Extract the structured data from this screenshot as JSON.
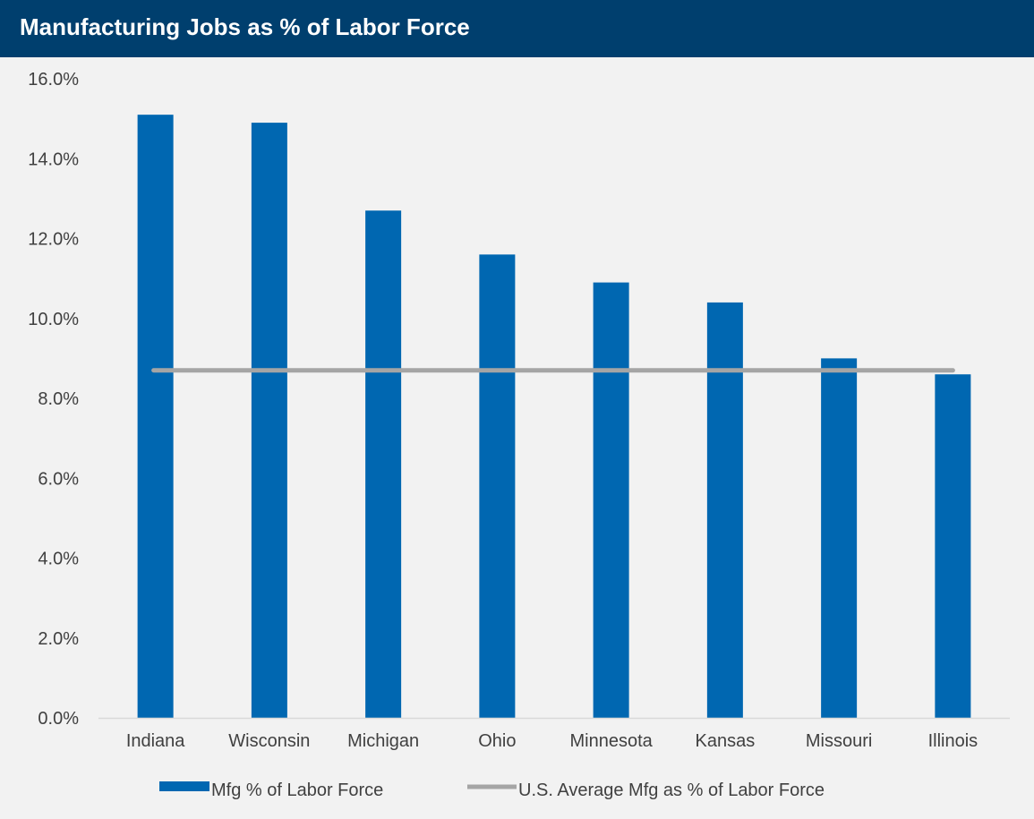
{
  "header": {
    "title": "Manufacturing Jobs as % of Labor Force"
  },
  "chart_data": {
    "type": "bar",
    "title": "Manufacturing Jobs as % of Labor Force",
    "xlabel": "",
    "ylabel": "",
    "categories": [
      "Indiana",
      "Wisconsin",
      "Michigan",
      "Ohio",
      "Minnesota",
      "Kansas",
      "Missouri",
      "Illinois"
    ],
    "series": [
      {
        "name": "Mfg % of Labor Force",
        "kind": "bar",
        "color": "#0067b1",
        "values": [
          15.1,
          14.9,
          12.7,
          11.6,
          10.9,
          10.4,
          9.0,
          8.6
        ]
      },
      {
        "name": "U.S. Average Mfg as % of Labor Force",
        "kind": "line",
        "color": "#a5a5a5",
        "values": [
          8.7,
          8.7,
          8.7,
          8.7,
          8.7,
          8.7,
          8.7,
          8.7
        ]
      }
    ],
    "ylim": [
      0,
      16
    ],
    "yticks": [
      0,
      2,
      4,
      6,
      8,
      10,
      12,
      14,
      16
    ],
    "ytick_labels": [
      "0.0%",
      "2.0%",
      "4.0%",
      "6.0%",
      "8.0%",
      "10.0%",
      "12.0%",
      "14.0%",
      "16.0%"
    ],
    "grid": false,
    "legend_position": "bottom"
  }
}
